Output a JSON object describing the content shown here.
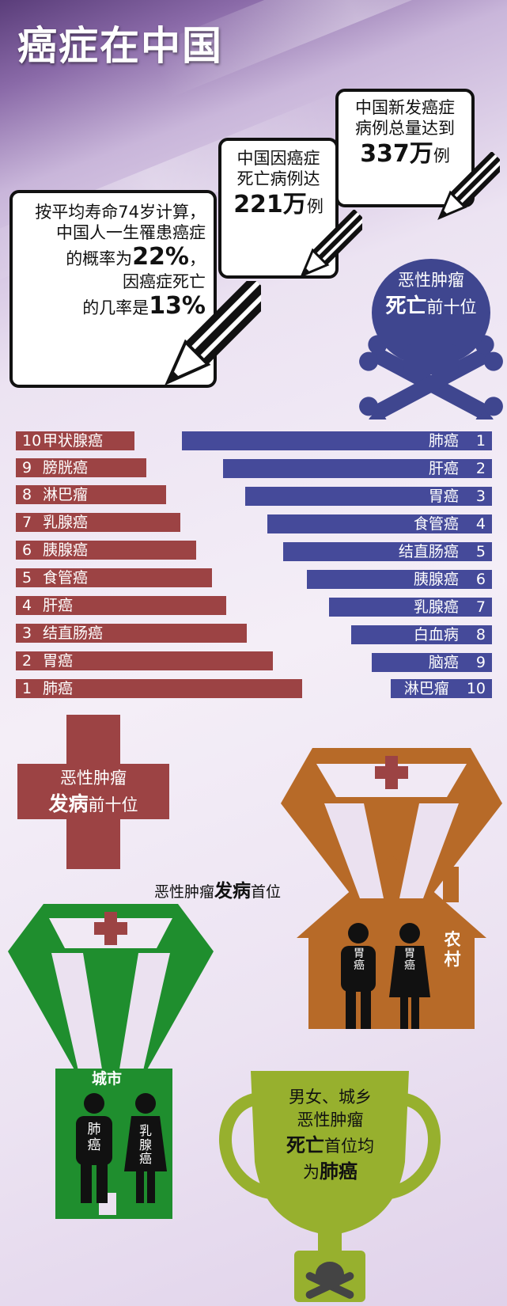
{
  "title": "癌症在中国",
  "callouts": {
    "new_cases": {
      "line1": "中国新发癌症",
      "line2": "病例总量达到",
      "number": "337万",
      "unit": "例"
    },
    "deaths": {
      "line1": "中国因癌症",
      "line2": "死亡病例达",
      "number": "221万",
      "unit": "例"
    },
    "lifetime": {
      "line1": "按平均寿命74岁计算，",
      "line2": "中国人一生罹患癌症",
      "line3_pre": "的概率为",
      "line3_num": "22%",
      "line3_post": "，",
      "line4": "因癌症死亡",
      "line5_pre": "的几率是",
      "line5_num": "13%"
    }
  },
  "death_top10": {
    "label_top": "恶性肿瘤",
    "label_bold": "死亡",
    "label_rest": "前十位"
  },
  "incidence_top10": {
    "label_top": "恶性肿瘤",
    "label_bold": "发病",
    "label_rest": "前十位"
  },
  "incidence_list": [
    {
      "rank": "10",
      "name": "甲状腺癌"
    },
    {
      "rank": "9",
      "name": "膀胱癌"
    },
    {
      "rank": "8",
      "name": "淋巴瘤"
    },
    {
      "rank": "7",
      "name": "乳腺癌"
    },
    {
      "rank": "6",
      "name": "胰腺癌"
    },
    {
      "rank": "5",
      "name": "食管癌"
    },
    {
      "rank": "4",
      "name": "肝癌"
    },
    {
      "rank": "3",
      "name": "结直肠癌"
    },
    {
      "rank": "2",
      "name": "胃癌"
    },
    {
      "rank": "1",
      "name": "肺癌"
    }
  ],
  "death_list": [
    {
      "rank": "1",
      "name": "肺癌"
    },
    {
      "rank": "2",
      "name": "肝癌"
    },
    {
      "rank": "3",
      "name": "胃癌"
    },
    {
      "rank": "4",
      "name": "食管癌"
    },
    {
      "rank": "5",
      "name": "结直肠癌"
    },
    {
      "rank": "6",
      "name": "胰腺癌"
    },
    {
      "rank": "7",
      "name": "乳腺癌"
    },
    {
      "rank": "8",
      "name": "白血病"
    },
    {
      "rank": "9",
      "name": "脑癌"
    },
    {
      "rank": "10",
      "name": "淋巴瘤"
    }
  ],
  "first_place": {
    "pre": "恶性肿瘤",
    "bold": "发病",
    "post": "首位"
  },
  "rural": {
    "label": "农村",
    "man": "胃癌",
    "woman": "胃癌"
  },
  "urban": {
    "label": "城市",
    "man": "肺癌",
    "woman": "乳腺癌"
  },
  "trophy": {
    "line1": "男女、城乡",
    "line2": "恶性肿瘤",
    "line3_bold": "死亡",
    "line3_rest": "首位均",
    "line4_pre": "为",
    "line4_bold": "肺癌"
  },
  "colors": {
    "red": "#9c4344",
    "blue": "#454a9a",
    "orange": "#b76a28",
    "green": "#1f8e2e",
    "lime": "#97b02e"
  }
}
